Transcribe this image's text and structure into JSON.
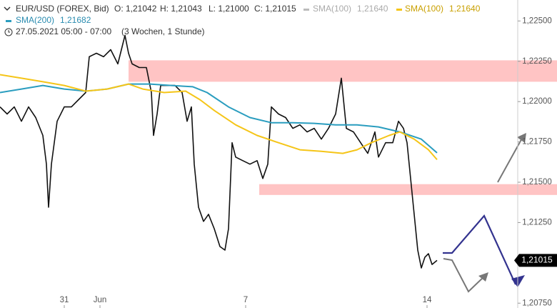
{
  "chart_data": {
    "type": "line",
    "header": {
      "symbol": "EUR/USD (FOREX, Bid)",
      "open": "O: 1,21042",
      "high": "H: 1,21043",
      "low": "L: 1,21000",
      "close": "C: 1,21015",
      "date": "27.05.2021 05:00 - 07:00",
      "span": "(3 Wochen, 1 Stunde)"
    },
    "xlim": [
      0,
      145
    ],
    "xticks": [
      {
        "value": 18,
        "label": "31"
      },
      {
        "value": 28,
        "label": "Jun"
      },
      {
        "value": 68.8,
        "label": "7"
      },
      {
        "value": 119.6,
        "label": "14"
      }
    ],
    "ylim": [
      1.2072,
      1.2263
    ],
    "yticks": [
      {
        "value": 1.2075,
        "label": "1,20750"
      },
      {
        "value": 1.21,
        "label": "1,21000"
      },
      {
        "value": 1.2125,
        "label": "1,21250"
      },
      {
        "value": 1.215,
        "label": "1,21500"
      },
      {
        "value": 1.2175,
        "label": "1,21750"
      },
      {
        "value": 1.22,
        "label": "1,22000"
      },
      {
        "value": 1.2225,
        "label": "1,22250"
      },
      {
        "value": 1.225,
        "label": "1,22500"
      }
    ],
    "zones": [
      {
        "x0": 36,
        "low": 1.22123,
        "high": 1.22256,
        "color": "#ffc4c4"
      },
      {
        "x0": 72.6,
        "low": 1.21421,
        "high": 1.21488,
        "color": "#ffc4c4"
      }
    ],
    "legend_extra": {
      "name": "SMA(100)",
      "label": "1,21640",
      "color": "#bbbbbb"
    },
    "series": [
      {
        "name": "EUR/USD (FOREX, Bid)",
        "color": "#111111",
        "x": [
          0,
          2,
          4,
          6,
          8,
          10,
          12,
          13,
          13.6,
          14.4,
          16,
          18,
          20,
          22,
          24,
          25,
          27,
          29,
          31,
          33,
          34,
          35,
          36,
          37,
          39,
          41,
          42.4,
          43,
          44,
          45,
          47,
          49,
          51,
          52.4,
          53.6,
          54.4,
          55.6,
          57,
          58.4,
          60,
          61.6,
          63,
          64,
          65,
          66,
          68,
          70,
          72,
          73.6,
          75,
          76,
          78,
          80,
          82,
          84,
          86,
          88,
          90,
          92,
          94,
          95.6,
          97,
          99,
          101,
          103,
          105,
          106,
          108,
          110,
          111.6,
          113,
          114,
          115,
          116,
          117,
          118,
          119,
          120,
          121,
          122.4
        ],
        "values": [
          1.21967,
          1.21923,
          1.21967,
          1.21878,
          1.21967,
          1.21901,
          1.2179,
          1.21612,
          1.21345,
          1.21612,
          1.21878,
          1.21967,
          1.21967,
          1.22012,
          1.22056,
          1.22278,
          1.223,
          1.22278,
          1.22322,
          1.22234,
          1.22322,
          1.22411,
          1.223,
          1.22234,
          1.22211,
          1.22211,
          1.22056,
          1.2179,
          1.21923,
          1.221,
          1.221,
          1.221,
          1.22056,
          1.21878,
          1.21967,
          1.21612,
          1.21345,
          1.21257,
          1.21301,
          1.21212,
          1.21101,
          1.21079,
          1.21212,
          1.21745,
          1.21656,
          1.21634,
          1.21612,
          1.21634,
          1.21523,
          1.21612,
          1.21967,
          1.21923,
          1.21901,
          1.21834,
          1.21856,
          1.21812,
          1.21834,
          1.21767,
          1.21834,
          1.21923,
          1.22145,
          1.21834,
          1.21812,
          1.21745,
          1.21679,
          1.21812,
          1.21656,
          1.21745,
          1.21745,
          1.21878,
          1.21834,
          1.21745,
          1.21523,
          1.21301,
          1.21079,
          1.20968,
          1.21035,
          1.21057,
          1.2099,
          1.21015
        ]
      },
      {
        "name": "SMA(200)",
        "label": "1,21682",
        "color": "#2a9dbf",
        "x": [
          0,
          6,
          12,
          18,
          24,
          30,
          36,
          42,
          48,
          54,
          58,
          64,
          70,
          76,
          82,
          88,
          94,
          100,
          106,
          112,
          118,
          122.4
        ],
        "values": [
          1.22056,
          1.22078,
          1.221,
          1.22078,
          1.22065,
          1.22078,
          1.22109,
          1.22109,
          1.221,
          1.22092,
          1.22056,
          1.21967,
          1.21901,
          1.21869,
          1.21869,
          1.21865,
          1.21856,
          1.21856,
          1.21843,
          1.21812,
          1.21767,
          1.21682
        ]
      },
      {
        "name": "SMA(100)",
        "label": "1,21640",
        "color": "#f5c518",
        "x": [
          0,
          6,
          12,
          18,
          24,
          30,
          36,
          40,
          46,
          52,
          56,
          60,
          66,
          72,
          78,
          84,
          90,
          96,
          100,
          104,
          109,
          112,
          116,
          120,
          122.4
        ],
        "values": [
          1.22167,
          1.22145,
          1.22123,
          1.221,
          1.22065,
          1.22078,
          1.22109,
          1.22078,
          1.22056,
          1.22065,
          1.22012,
          1.21945,
          1.21856,
          1.2179,
          1.21745,
          1.21701,
          1.21692,
          1.21679,
          1.21701,
          1.21745,
          1.2179,
          1.21812,
          1.21767,
          1.21701,
          1.2164
        ]
      }
    ],
    "last_price": {
      "value": 1.21015,
      "label": "1,21015"
    }
  }
}
